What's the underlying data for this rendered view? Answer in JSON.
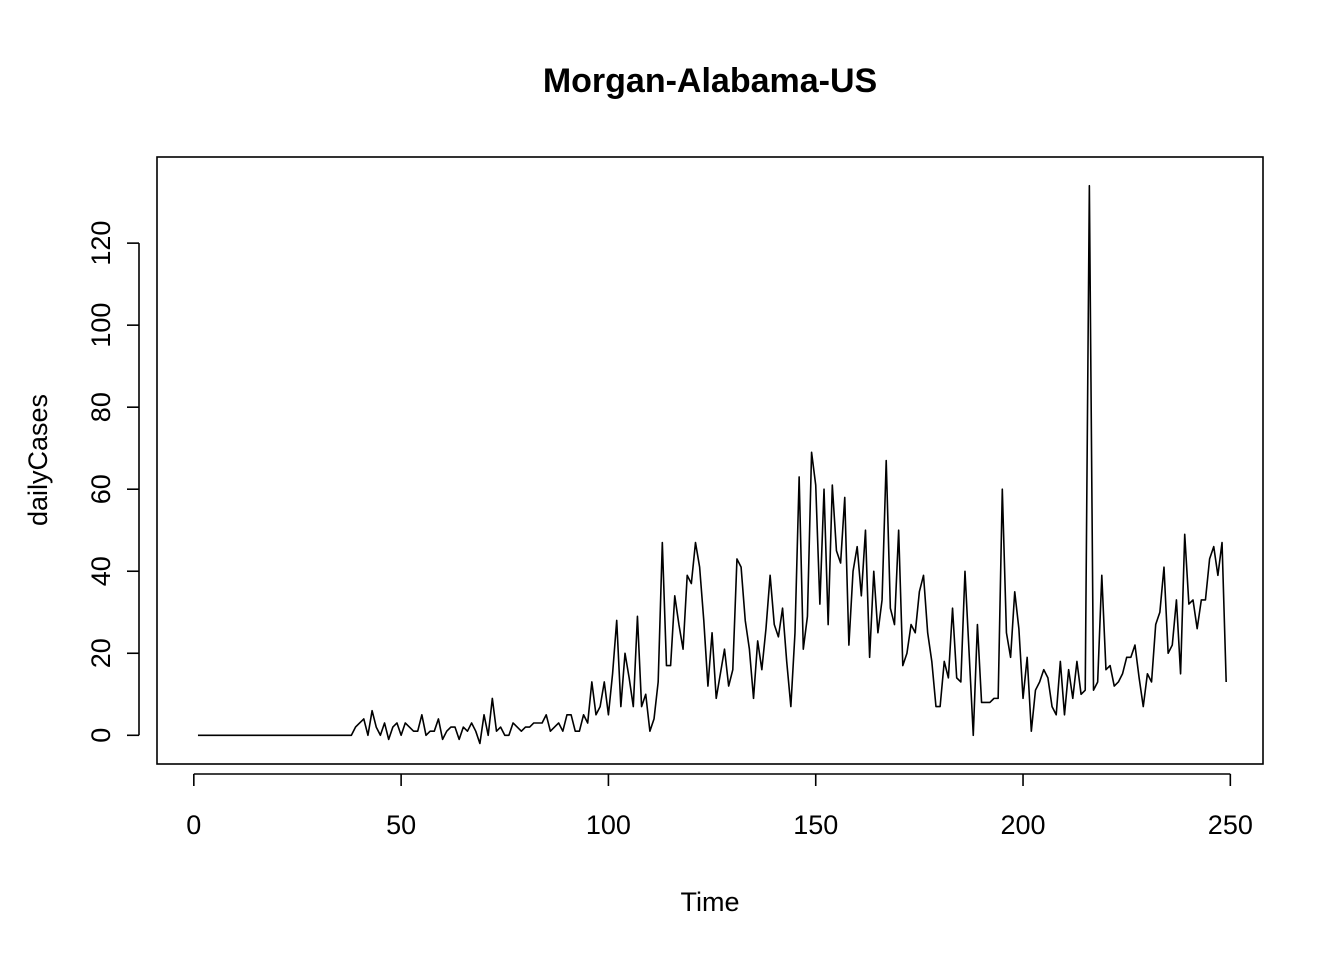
{
  "chart_data": {
    "type": "line",
    "title": "Morgan-Alabama-US",
    "xlabel": "Time",
    "ylabel": "dailyCases",
    "xlim": [
      1,
      248
    ],
    "ylim": [
      -7,
      141
    ],
    "xticks": [
      0,
      50,
      100,
      150,
      200,
      250
    ],
    "yticks": [
      0,
      20,
      40,
      60,
      80,
      100,
      120
    ],
    "grid": false,
    "legend": "none",
    "x_start": 1,
    "values": [
      0,
      0,
      0,
      0,
      0,
      0,
      0,
      0,
      0,
      0,
      0,
      0,
      0,
      0,
      0,
      0,
      0,
      0,
      0,
      0,
      0,
      0,
      0,
      0,
      0,
      0,
      0,
      0,
      0,
      0,
      0,
      0,
      0,
      0,
      0,
      0,
      0,
      0,
      2,
      3,
      4,
      0,
      6,
      2,
      0,
      3,
      -1,
      2,
      3,
      0,
      3,
      2,
      1,
      1,
      5,
      0,
      1,
      1,
      4,
      -1,
      1,
      2,
      2,
      -1,
      2,
      1,
      3,
      1,
      -2,
      5,
      0,
      9,
      1,
      2,
      0,
      0,
      3,
      2,
      1,
      2,
      2,
      3,
      3,
      3,
      5,
      1,
      2,
      3,
      1,
      5,
      5,
      1,
      1,
      5,
      3,
      13,
      5,
      7,
      13,
      5,
      15,
      28,
      7,
      20,
      14,
      7,
      29,
      7,
      10,
      1,
      4,
      13,
      47,
      17,
      17,
      34,
      27,
      21,
      39,
      37,
      47,
      41,
      28,
      12,
      25,
      9,
      15,
      21,
      12,
      16,
      43,
      41,
      28,
      21,
      9,
      23,
      16,
      26,
      39,
      27,
      24,
      31,
      18,
      7,
      25,
      63,
      21,
      29,
      69,
      61,
      32,
      60,
      27,
      61,
      45,
      42,
      58,
      22,
      40,
      46,
      34,
      50,
      19,
      40,
      25,
      33,
      67,
      31,
      27,
      50,
      17,
      20,
      27,
      25,
      35,
      39,
      25,
      18,
      7,
      7,
      18,
      14,
      31,
      14,
      13,
      40,
      20,
      0,
      27,
      8,
      8,
      8,
      9,
      9,
      60,
      25,
      19,
      35,
      26,
      9,
      19,
      1,
      11,
      13,
      16,
      14,
      7,
      5,
      18,
      5,
      16,
      9,
      18,
      10,
      11,
      134,
      11,
      13,
      39,
      16,
      17,
      12,
      13,
      15,
      19,
      19,
      22,
      14,
      7,
      15,
      13,
      27,
      30,
      41,
      20,
      22,
      33,
      15,
      49,
      32,
      33,
      26,
      33,
      33,
      43,
      46,
      39,
      47,
      13
    ]
  }
}
